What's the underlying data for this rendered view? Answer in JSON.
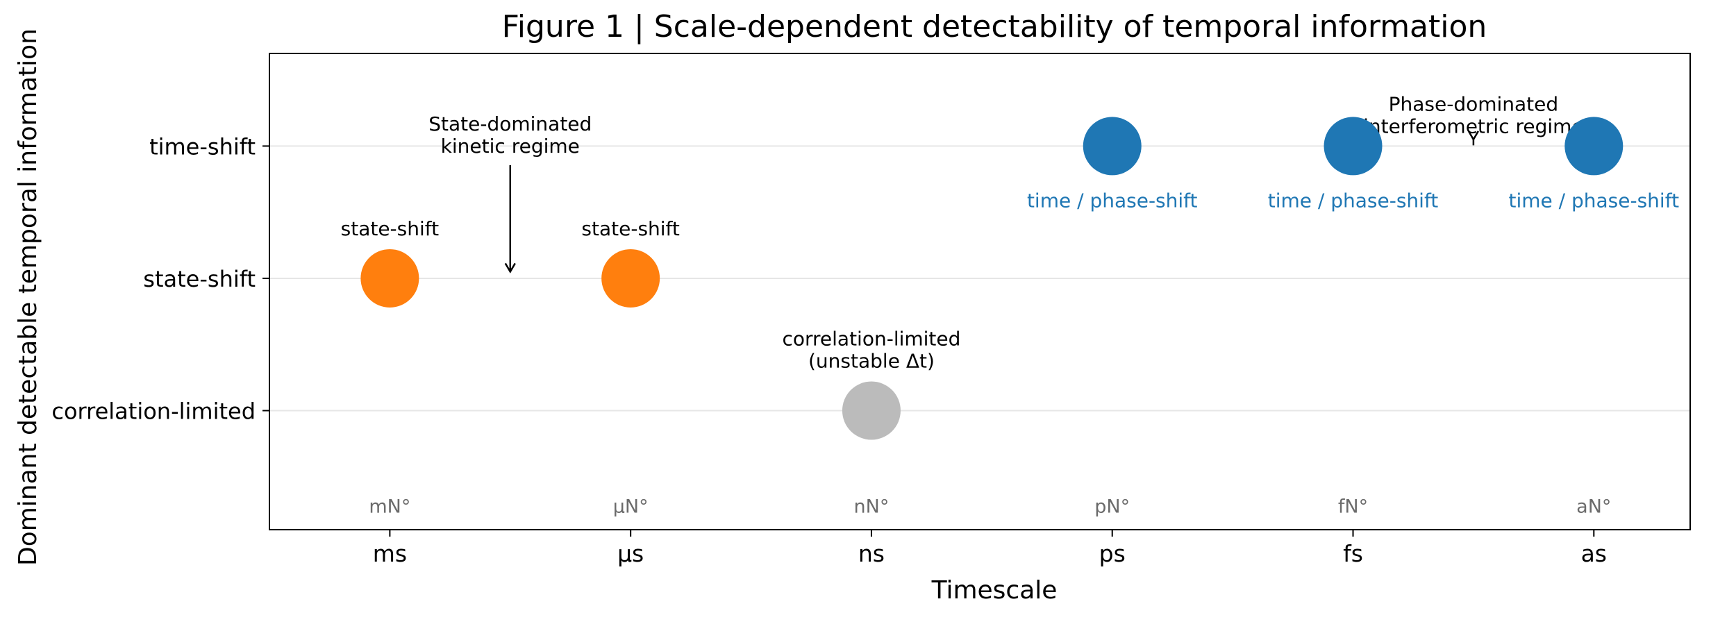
{
  "chart_data": {
    "type": "scatter",
    "title": "Figure 1 | Scale-dependent detectability of temporal information",
    "xlabel": "Timescale",
    "ylabel": "Dominant detectable temporal information",
    "categories": [
      "ms",
      "µs",
      "ns",
      "ps",
      "fs",
      "as"
    ],
    "y_categories": [
      "correlation-limited",
      "state-shift",
      "time-shift"
    ],
    "ylim": [
      -0.9,
      2.7
    ],
    "xlim": [
      -0.5,
      5.4
    ],
    "grid": "horizontal",
    "scale_notation": [
      "mN°",
      "µN°",
      "nN°",
      "pN°",
      "fN°",
      "aN°"
    ],
    "points": [
      {
        "x": "ms",
        "y": "state-shift",
        "label": "state-shift",
        "color": "#ff7f0e"
      },
      {
        "x": "µs",
        "y": "state-shift",
        "label": "state-shift",
        "color": "#ff7f0e"
      },
      {
        "x": "ns",
        "y": "correlation-limited",
        "label": "correlation-limited\n(unstable Δt)",
        "color": "#bbbbbb"
      },
      {
        "x": "ps",
        "y": "time-shift",
        "label": "time / phase-shift",
        "color": "#1f77b4"
      },
      {
        "x": "fs",
        "y": "time-shift",
        "label": "time / phase-shift",
        "color": "#1f77b4"
      },
      {
        "x": "as",
        "y": "time-shift",
        "label": "time / phase-shift",
        "color": "#1f77b4"
      }
    ],
    "annotations": [
      {
        "text": "State-dominated\nkinetic regime",
        "x": 0.5,
        "y": 1.95
      },
      {
        "text": "Phase-dominated\ninterferometric regime",
        "x": 4.5,
        "y": 2.1
      }
    ]
  }
}
